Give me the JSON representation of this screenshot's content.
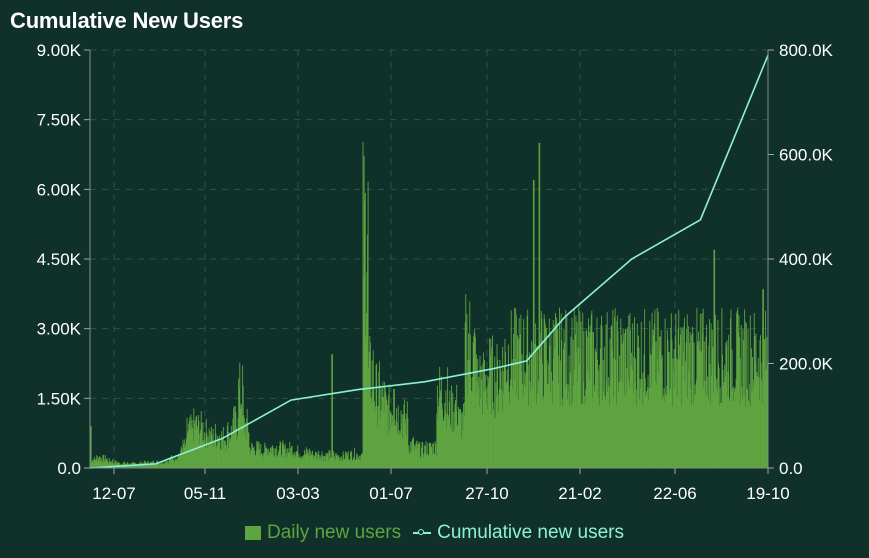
{
  "chart_data": {
    "type": "bar+line",
    "title": "Cumulative New Users",
    "x_tick_labels": [
      "12-07",
      "05-11",
      "03-03",
      "01-07",
      "27-10",
      "21-02",
      "22-06",
      "19-10"
    ],
    "y_left": {
      "ticks": [
        "0.0",
        "1.50K",
        "3.00K",
        "4.50K",
        "6.00K",
        "7.50K",
        "9.00K"
      ],
      "lim": [
        0,
        9000
      ]
    },
    "y_right": {
      "ticks": [
        "0.0",
        "200.0K",
        "400.0K",
        "600.0K",
        "800.0K"
      ],
      "lim": [
        0,
        800000
      ]
    },
    "grid": true,
    "legend_position": "bottom",
    "series": [
      {
        "name": "Daily new users",
        "kind": "bar",
        "axis": "left",
        "color": "#5ea440",
        "values_per_10_days": [
          180,
          220,
          200,
          150,
          120,
          100,
          100,
          90,
          100,
          110,
          110,
          120,
          120,
          160,
          200,
          280,
          450,
          800,
          900,
          850,
          750,
          650,
          700,
          650,
          750,
          950,
          1600,
          900,
          420,
          420,
          380,
          420,
          430,
          410,
          380,
          400,
          350,
          300,
          330,
          280,
          300,
          260,
          270,
          250,
          250,
          280,
          300,
          270,
          5000,
          2000,
          1600,
          1450,
          1250,
          1300,
          1150,
          1050,
          500,
          430,
          390,
          420,
          450,
          1600,
          1550,
          1250,
          1300,
          1000,
          2700,
          2400,
          1850,
          1800,
          2000,
          1900,
          2100,
          2400
        ],
        "spikes": [
          {
            "x": "2020-07-12",
            "value": 900
          },
          {
            "x": "2021-09-10",
            "value": 2450
          },
          {
            "x": "2021-12-28",
            "value": 1700
          },
          {
            "x": "2022-08-31",
            "value": 6200
          },
          {
            "x": "2022-09-10",
            "value": 7000
          },
          {
            "x": "2022-09-20",
            "value": 3000
          },
          {
            "x": "2023-04-26",
            "value": 2500
          },
          {
            "x": "2023-07-15",
            "value": 4700
          },
          {
            "x": "2023-10-09",
            "value": 3850
          }
        ]
      },
      {
        "name": "Cumulative new users",
        "kind": "line",
        "axis": "right",
        "color": "#8ff0d8",
        "x": [
          "2020-07-12",
          "2020-11-05",
          "2021-03-03",
          "2021-07-01",
          "2021-10-27",
          "2022-02-21",
          "2022-06-22",
          "2022-08-20",
          "2022-10-27",
          "2023-02-21",
          "2023-06-22",
          "2023-10-19"
        ],
        "values": [
          0,
          8000,
          57000,
          130000,
          150000,
          165000,
          190000,
          205000,
          290000,
          400000,
          475000,
          790000
        ]
      }
    ]
  },
  "legend": {
    "bar_label": "Daily new users",
    "line_label": "Cumulative new users"
  }
}
